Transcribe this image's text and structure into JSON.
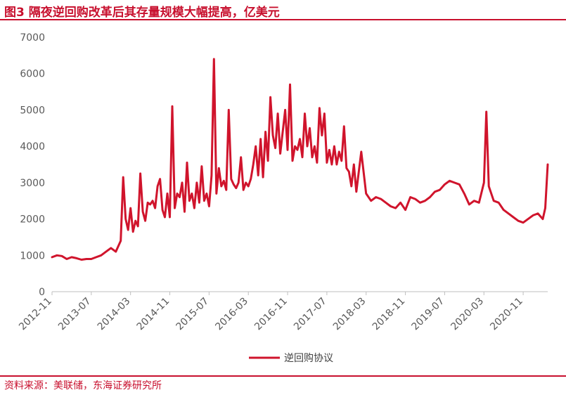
{
  "header": {
    "title": "图3  隔夜逆回购改革后其存量规模大幅提高，亿美元"
  },
  "footer": {
    "source": "资料来源：美联储，东海证券研究所"
  },
  "colors": {
    "accent": "#c8102e",
    "series": "#d0142c",
    "axis": "#bfbfbf",
    "text": "#595959"
  },
  "chart_data": {
    "type": "line",
    "xlabel": "",
    "ylabel": "",
    "ylim": [
      0,
      7000
    ],
    "yticks": [
      0,
      1000,
      2000,
      3000,
      4000,
      5000,
      6000,
      7000
    ],
    "grid": false,
    "legend_position": "bottom-center",
    "x_range": [
      "2012-11",
      "2021-04"
    ],
    "xticks": [
      "2012-11",
      "2013-07",
      "2014-03",
      "2014-11",
      "2015-07",
      "2016-03",
      "2016-11",
      "2017-07",
      "2018-03",
      "2018-11",
      "2019-07",
      "2020-03",
      "2020-11"
    ],
    "series": [
      {
        "name": "逆回购协议",
        "x": [
          "2012-11",
          "2012-12",
          "2013-01",
          "2013-02",
          "2013-03",
          "2013-04",
          "2013-05",
          "2013-06",
          "2013-07",
          "2013-08",
          "2013-09",
          "2013-10",
          "2013-11",
          "2013-12",
          "2014-01",
          "2014-01",
          "2014-02",
          "2014-02",
          "2014-03",
          "2014-03",
          "2014-04",
          "2014-04",
          "2014-05",
          "2014-05",
          "2014-06",
          "2014-06",
          "2014-07",
          "2014-07",
          "2014-08",
          "2014-08",
          "2014-09",
          "2014-09",
          "2014-10",
          "2014-10",
          "2014-11",
          "2014-11",
          "2014-12",
          "2014-12",
          "2015-01",
          "2015-01",
          "2015-02",
          "2015-02",
          "2015-03",
          "2015-03",
          "2015-04",
          "2015-04",
          "2015-05",
          "2015-05",
          "2015-06",
          "2015-06",
          "2015-07",
          "2015-07",
          "2015-08",
          "2015-08",
          "2015-09",
          "2015-09",
          "2015-10",
          "2015-10",
          "2015-11",
          "2015-11",
          "2015-12",
          "2015-12",
          "2016-01",
          "2016-01",
          "2016-02",
          "2016-02",
          "2016-03",
          "2016-03",
          "2016-04",
          "2016-04",
          "2016-05",
          "2016-05",
          "2016-06",
          "2016-06",
          "2016-07",
          "2016-07",
          "2016-08",
          "2016-08",
          "2016-09",
          "2016-09",
          "2016-10",
          "2016-10",
          "2016-11",
          "2016-11",
          "2016-12",
          "2016-12",
          "2017-01",
          "2017-01",
          "2017-02",
          "2017-02",
          "2017-03",
          "2017-03",
          "2017-04",
          "2017-04",
          "2017-05",
          "2017-05",
          "2017-06",
          "2017-06",
          "2017-07",
          "2017-07",
          "2017-08",
          "2017-08",
          "2017-09",
          "2017-09",
          "2017-10",
          "2017-10",
          "2017-11",
          "2017-11",
          "2017-12",
          "2017-12",
          "2018-01",
          "2018-02",
          "2018-03",
          "2018-04",
          "2018-05",
          "2018-06",
          "2018-07",
          "2018-08",
          "2018-09",
          "2018-10",
          "2018-11",
          "2018-12",
          "2019-01",
          "2019-02",
          "2019-03",
          "2019-04",
          "2019-05",
          "2019-06",
          "2019-07",
          "2019-08",
          "2019-09",
          "2019-10",
          "2019-11",
          "2019-12",
          "2020-01",
          "2020-02",
          "2020-03",
          "2020-03",
          "2020-04",
          "2020-05",
          "2020-06",
          "2020-07",
          "2020-08",
          "2020-09",
          "2020-10",
          "2020-11",
          "2020-12",
          "2021-01",
          "2021-02",
          "2021-03",
          "2021-03",
          "2021-04"
        ],
        "values": [
          950,
          1000,
          980,
          900,
          950,
          920,
          880,
          900,
          900,
          950,
          1000,
          1100,
          1200,
          1100,
          1400,
          3150,
          2000,
          1700,
          2300,
          1650,
          1950,
          1800,
          3250,
          2200,
          1950,
          2450,
          2400,
          2500,
          2300,
          2900,
          3100,
          2250,
          2050,
          2700,
          2050,
          5100,
          2300,
          2700,
          2600,
          3000,
          2200,
          3550,
          2500,
          2700,
          2300,
          3000,
          2450,
          3450,
          2500,
          2700,
          2350,
          3200,
          6400,
          2700,
          3400,
          2900,
          3050,
          2800,
          5000,
          3100,
          2950,
          2850,
          3000,
          3700,
          2800,
          3000,
          2900,
          3100,
          3500,
          4000,
          3200,
          4200,
          3150,
          4400,
          3600,
          5350,
          4300,
          3950,
          4900,
          3800,
          4400,
          5000,
          3900,
          5700,
          3600,
          4000,
          3900,
          4200,
          3700,
          4900,
          4000,
          4500,
          3700,
          4000,
          3550,
          5050,
          4300,
          4900,
          3550,
          3900,
          3500,
          4000,
          3500,
          3850,
          3600,
          4550,
          3400,
          3300,
          2900,
          3500,
          2750,
          3850,
          2700,
          2500,
          2600,
          2550,
          2450,
          2350,
          2300,
          2450,
          2250,
          2600,
          2550,
          2450,
          2500,
          2600,
          2750,
          2800,
          2950,
          3050,
          3000,
          2950,
          2700,
          2400,
          2500,
          2450,
          3000,
          4950,
          2900,
          2500,
          2450,
          2250,
          2150,
          2050,
          1950,
          1900,
          2000,
          2100,
          2150,
          2000,
          2300,
          3500
        ]
      }
    ]
  }
}
